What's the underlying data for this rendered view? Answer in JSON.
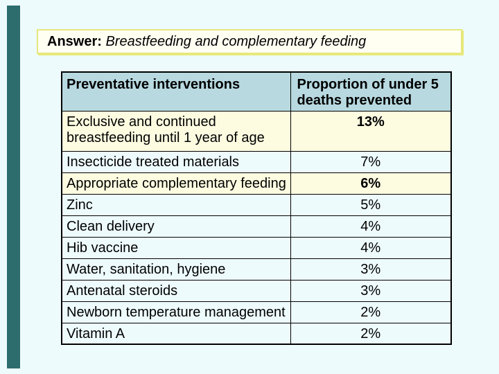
{
  "colors": {
    "slide_background": "#eefbfd",
    "accent_bar": "#2e6d6d",
    "title_fill": "#fffff2",
    "title_border": "#e6e67e",
    "title_shadow": "#e9e977",
    "table_header_bg": "#b8d9e0",
    "row_highlight_bg": "#fdfce1"
  },
  "title": {
    "prefix": "Answer: ",
    "text": "Breastfeeding and complementary feeding"
  },
  "table": {
    "columns": [
      "Preventative interventions",
      "Proportion of under 5 deaths prevented"
    ],
    "rows": [
      {
        "label": "Exclusive and continued breastfeeding until 1 year of age",
        "value": "13%",
        "highlight": true,
        "bold_value": true,
        "tall": true
      },
      {
        "label": "Insecticide treated materials",
        "value": "7%",
        "highlight": false,
        "bold_value": false,
        "tall": false
      },
      {
        "label": "Appropriate complementary feeding",
        "value": "6%",
        "highlight": true,
        "bold_value": true,
        "tall": false
      },
      {
        "label": "Zinc",
        "value": "5%",
        "highlight": false,
        "bold_value": false,
        "tall": false
      },
      {
        "label": "Clean delivery",
        "value": "4%",
        "highlight": false,
        "bold_value": false,
        "tall": false
      },
      {
        "label": "Hib vaccine",
        "value": "4%",
        "highlight": false,
        "bold_value": false,
        "tall": false
      },
      {
        "label": "Water, sanitation, hygiene",
        "value": "3%",
        "highlight": false,
        "bold_value": false,
        "tall": false
      },
      {
        "label": "Antenatal steroids",
        "value": "3%",
        "highlight": false,
        "bold_value": false,
        "tall": false
      },
      {
        "label": "Newborn temperature management",
        "value": "2%",
        "highlight": false,
        "bold_value": false,
        "tall": false
      },
      {
        "label": "Vitamin A",
        "value": "2%",
        "highlight": false,
        "bold_value": false,
        "tall": false
      }
    ]
  },
  "chart_data": {
    "type": "table",
    "title": "Answer: Breastfeeding and complementary feeding",
    "columns": [
      "Preventative interventions",
      "Proportion of under 5 deaths prevented"
    ],
    "rows": [
      [
        "Exclusive and continued breastfeeding until 1 year of age",
        "13%"
      ],
      [
        "Insecticide treated materials",
        "7%"
      ],
      [
        "Appropriate complementary feeding",
        "6%"
      ],
      [
        "Zinc",
        "5%"
      ],
      [
        "Clean delivery",
        "4%"
      ],
      [
        "Hib vaccine",
        "4%"
      ],
      [
        "Water, sanitation, hygiene",
        "3%"
      ],
      [
        "Antenatal steroids",
        "3%"
      ],
      [
        "Newborn temperature management",
        "2%"
      ],
      [
        "Vitamin A",
        "2%"
      ]
    ]
  }
}
